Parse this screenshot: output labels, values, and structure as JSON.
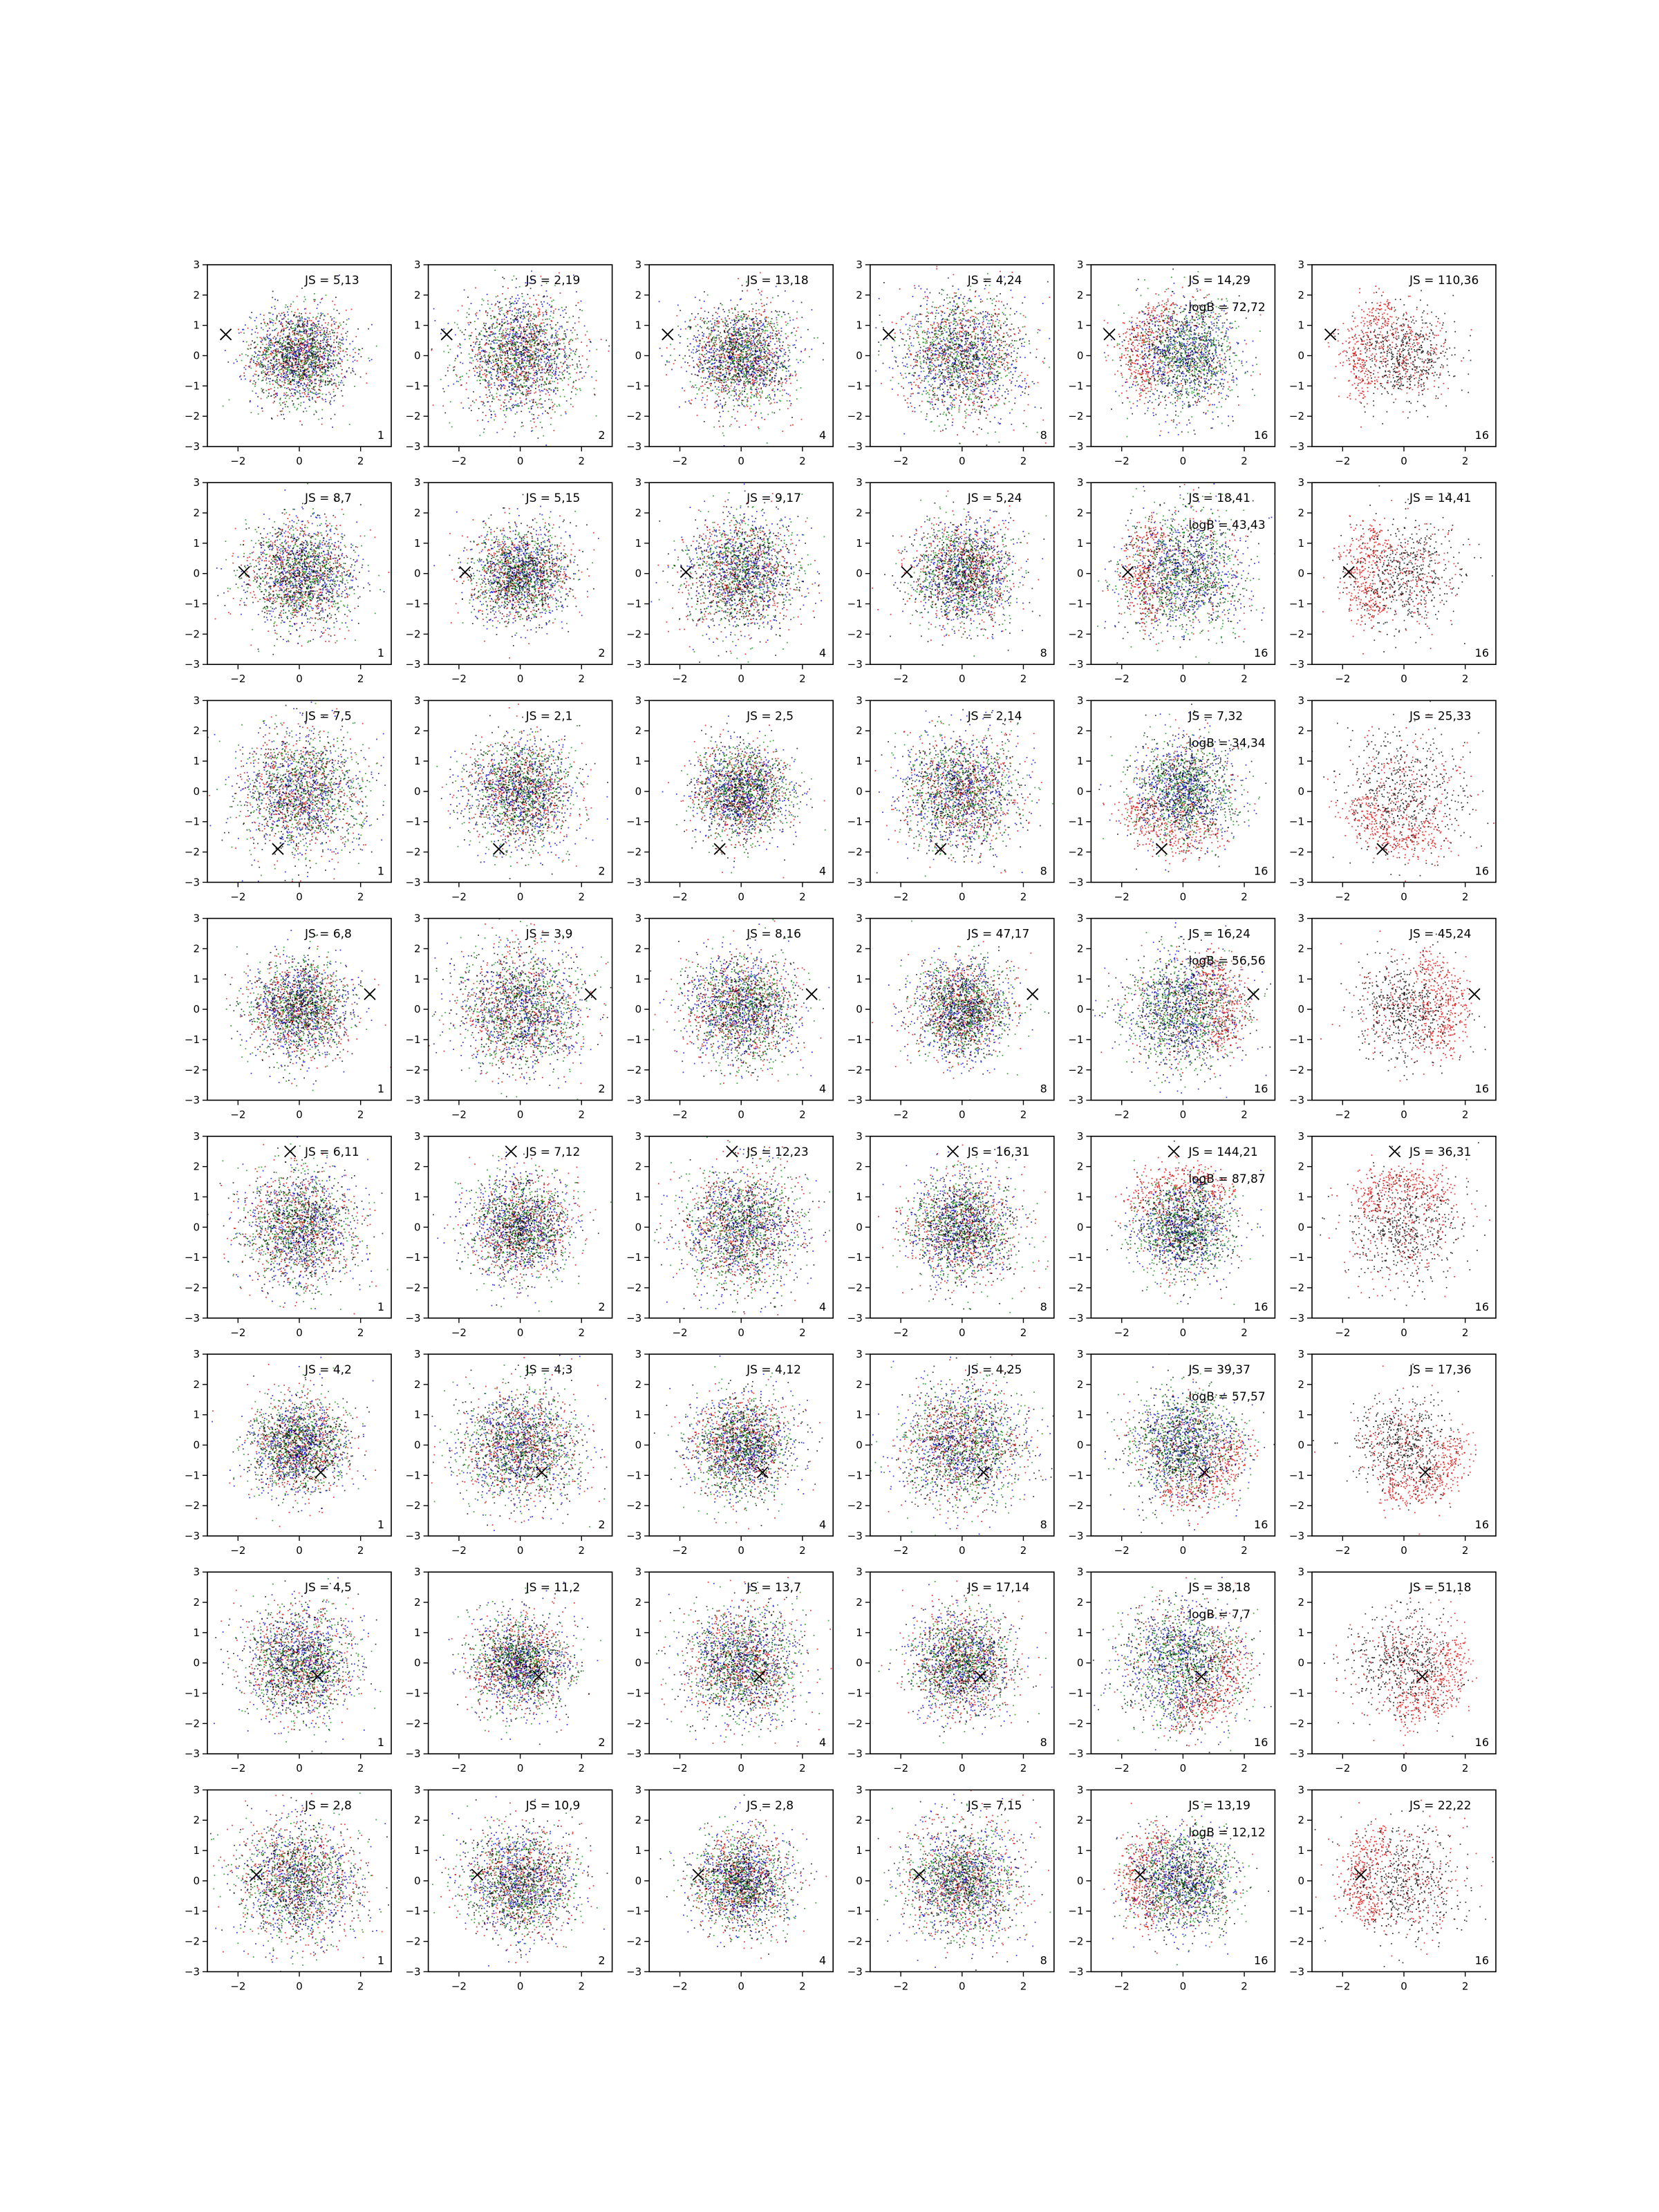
{
  "figure": {
    "rows": 8,
    "cols": 6,
    "axis": {
      "xlim": [
        -3,
        3
      ],
      "ylim": [
        -3,
        3
      ],
      "xticks": [
        -2,
        0,
        2
      ],
      "yticks": [
        -3,
        -2,
        -1,
        0,
        1,
        2,
        3
      ]
    },
    "colors": {
      "red": "#e00000",
      "blue": "#0000e0",
      "green": "#008a00",
      "black": "#000000"
    },
    "column_palettes": [
      [
        "red",
        "blue",
        "green",
        "black"
      ],
      [
        "red",
        "blue",
        "green",
        "black"
      ],
      [
        "red",
        "blue",
        "green",
        "black"
      ],
      [
        "red",
        "blue",
        "green",
        "black"
      ],
      [
        "red",
        "blue",
        "green",
        "black"
      ],
      [
        "red",
        "black"
      ]
    ],
    "column_labels": [
      "1",
      "2",
      "4",
      "8",
      "16",
      "16"
    ]
  },
  "chart_data": [
    {
      "type": "scatter",
      "row": 0,
      "cols": [
        {
          "js": "JS = 5,13",
          "corner": "1",
          "marker": [
            -2.4,
            0.7
          ]
        },
        {
          "js": "JS = 2,19",
          "corner": "2",
          "marker": [
            -2.4,
            0.7
          ]
        },
        {
          "js": "JS = 13,18",
          "corner": "4",
          "marker": [
            -2.4,
            0.7
          ]
        },
        {
          "js": "JS = 4,24",
          "corner": "8",
          "marker": [
            -2.4,
            0.7
          ]
        },
        {
          "js": "JS = 14,29",
          "logb": "logB = 72,72",
          "corner": "16",
          "marker": [
            -2.4,
            0.7
          ]
        },
        {
          "js": "JS = 110,36",
          "corner": "16",
          "marker": [
            -2.4,
            0.7
          ]
        }
      ]
    },
    {
      "type": "scatter",
      "row": 1,
      "cols": [
        {
          "js": "JS = 8,7",
          "corner": "1",
          "marker": [
            -1.8,
            0.05
          ]
        },
        {
          "js": "JS = 5,15",
          "corner": "2",
          "marker": [
            -1.8,
            0.05
          ]
        },
        {
          "js": "JS = 9,17",
          "corner": "4",
          "marker": [
            -1.8,
            0.05
          ]
        },
        {
          "js": "JS = 5,24",
          "corner": "8",
          "marker": [
            -1.8,
            0.05
          ]
        },
        {
          "js": "JS = 18,41",
          "logb": "logB = 43,43",
          "corner": "16",
          "marker": [
            -1.8,
            0.05
          ]
        },
        {
          "js": "JS = 14,41",
          "corner": "16",
          "marker": [
            -1.8,
            0.05
          ]
        }
      ]
    },
    {
      "type": "scatter",
      "row": 2,
      "cols": [
        {
          "js": "JS = 7,5",
          "corner": "1",
          "marker": [
            -0.7,
            -1.9
          ]
        },
        {
          "js": "JS = 2,1",
          "corner": "2",
          "marker": [
            -0.7,
            -1.9
          ]
        },
        {
          "js": "JS = 2,5",
          "corner": "4",
          "marker": [
            -0.7,
            -1.9
          ]
        },
        {
          "js": "JS = 2,14",
          "corner": "8",
          "marker": [
            -0.7,
            -1.9
          ]
        },
        {
          "js": "JS = 7,32",
          "logb": "logB = 34,34",
          "corner": "16",
          "marker": [
            -0.7,
            -1.9
          ]
        },
        {
          "js": "JS = 25,33",
          "corner": "16",
          "marker": [
            -0.7,
            -1.9
          ]
        }
      ]
    },
    {
      "type": "scatter",
      "row": 3,
      "cols": [
        {
          "js": "JS = 6,8",
          "corner": "1",
          "marker": [
            2.3,
            0.5
          ]
        },
        {
          "js": "JS = 3,9",
          "corner": "2",
          "marker": [
            2.3,
            0.5
          ]
        },
        {
          "js": "JS = 8,16",
          "corner": "4",
          "marker": [
            2.3,
            0.5
          ]
        },
        {
          "js": "JS = 47,17",
          "corner": "8",
          "marker": [
            2.3,
            0.5
          ]
        },
        {
          "js": "JS = 16,24",
          "logb": "logB = 56,56",
          "corner": "16",
          "marker": [
            2.3,
            0.5
          ]
        },
        {
          "js": "JS = 45,24",
          "corner": "16",
          "marker": [
            2.3,
            0.5
          ]
        }
      ]
    },
    {
      "type": "scatter",
      "row": 4,
      "cols": [
        {
          "js": "JS = 6,11",
          "corner": "1",
          "marker": [
            -0.3,
            2.5
          ]
        },
        {
          "js": "JS = 7,12",
          "corner": "2",
          "marker": [
            -0.3,
            2.5
          ]
        },
        {
          "js": "JS = 12,23",
          "corner": "4",
          "marker": [
            -0.3,
            2.5
          ]
        },
        {
          "js": "JS = 16,31",
          "corner": "8",
          "marker": [
            -0.3,
            2.5
          ]
        },
        {
          "js": "JS = 144,21",
          "logb": "logB = 87,87",
          "corner": "16",
          "marker": [
            -0.3,
            2.5
          ]
        },
        {
          "js": "JS = 36,31",
          "corner": "16",
          "marker": [
            -0.3,
            2.5
          ]
        }
      ]
    },
    {
      "type": "scatter",
      "row": 5,
      "cols": [
        {
          "js": "JS = 4,2",
          "corner": "1",
          "marker": [
            0.7,
            -0.9
          ]
        },
        {
          "js": "JS = 4,3",
          "corner": "2",
          "marker": [
            0.7,
            -0.9
          ]
        },
        {
          "js": "JS = 4,12",
          "corner": "4",
          "marker": [
            0.7,
            -0.9
          ]
        },
        {
          "js": "JS = 4,25",
          "corner": "8",
          "marker": [
            0.7,
            -0.9
          ]
        },
        {
          "js": "JS = 39,37",
          "logb": "logB = 57,57",
          "corner": "16",
          "marker": [
            0.7,
            -0.9
          ]
        },
        {
          "js": "JS = 17,36",
          "corner": "16",
          "marker": [
            0.7,
            -0.9
          ]
        }
      ]
    },
    {
      "type": "scatter",
      "row": 6,
      "cols": [
        {
          "js": "JS = 4,5",
          "corner": "1",
          "marker": [
            0.6,
            -0.45
          ]
        },
        {
          "js": "JS = 11,2",
          "corner": "2",
          "marker": [
            0.6,
            -0.45
          ]
        },
        {
          "js": "JS = 13,7",
          "corner": "4",
          "marker": [
            0.6,
            -0.45
          ]
        },
        {
          "js": "JS = 17,14",
          "corner": "8",
          "marker": [
            0.6,
            -0.45
          ]
        },
        {
          "js": "JS = 38,18",
          "logb": "logB = 7,7",
          "corner": "16",
          "marker": [
            0.6,
            -0.45
          ]
        },
        {
          "js": "JS = 51,18",
          "corner": "16",
          "marker": [
            0.6,
            -0.45
          ]
        }
      ]
    },
    {
      "type": "scatter",
      "row": 7,
      "cols": [
        {
          "js": "JS = 2,8",
          "corner": "1",
          "marker": [
            -1.4,
            0.2
          ]
        },
        {
          "js": "JS = 10,9",
          "corner": "2",
          "marker": [
            -1.4,
            0.2
          ]
        },
        {
          "js": "JS = 2,8",
          "corner": "4",
          "marker": [
            -1.4,
            0.2
          ]
        },
        {
          "js": "JS = 7,15",
          "corner": "8",
          "marker": [
            -1.4,
            0.2
          ]
        },
        {
          "js": "JS = 13,19",
          "logb": "logB = 12,12",
          "corner": "16",
          "marker": [
            -1.4,
            0.2
          ]
        },
        {
          "js": "JS = 22,22",
          "corner": "16",
          "marker": [
            -1.4,
            0.2
          ]
        }
      ]
    }
  ]
}
